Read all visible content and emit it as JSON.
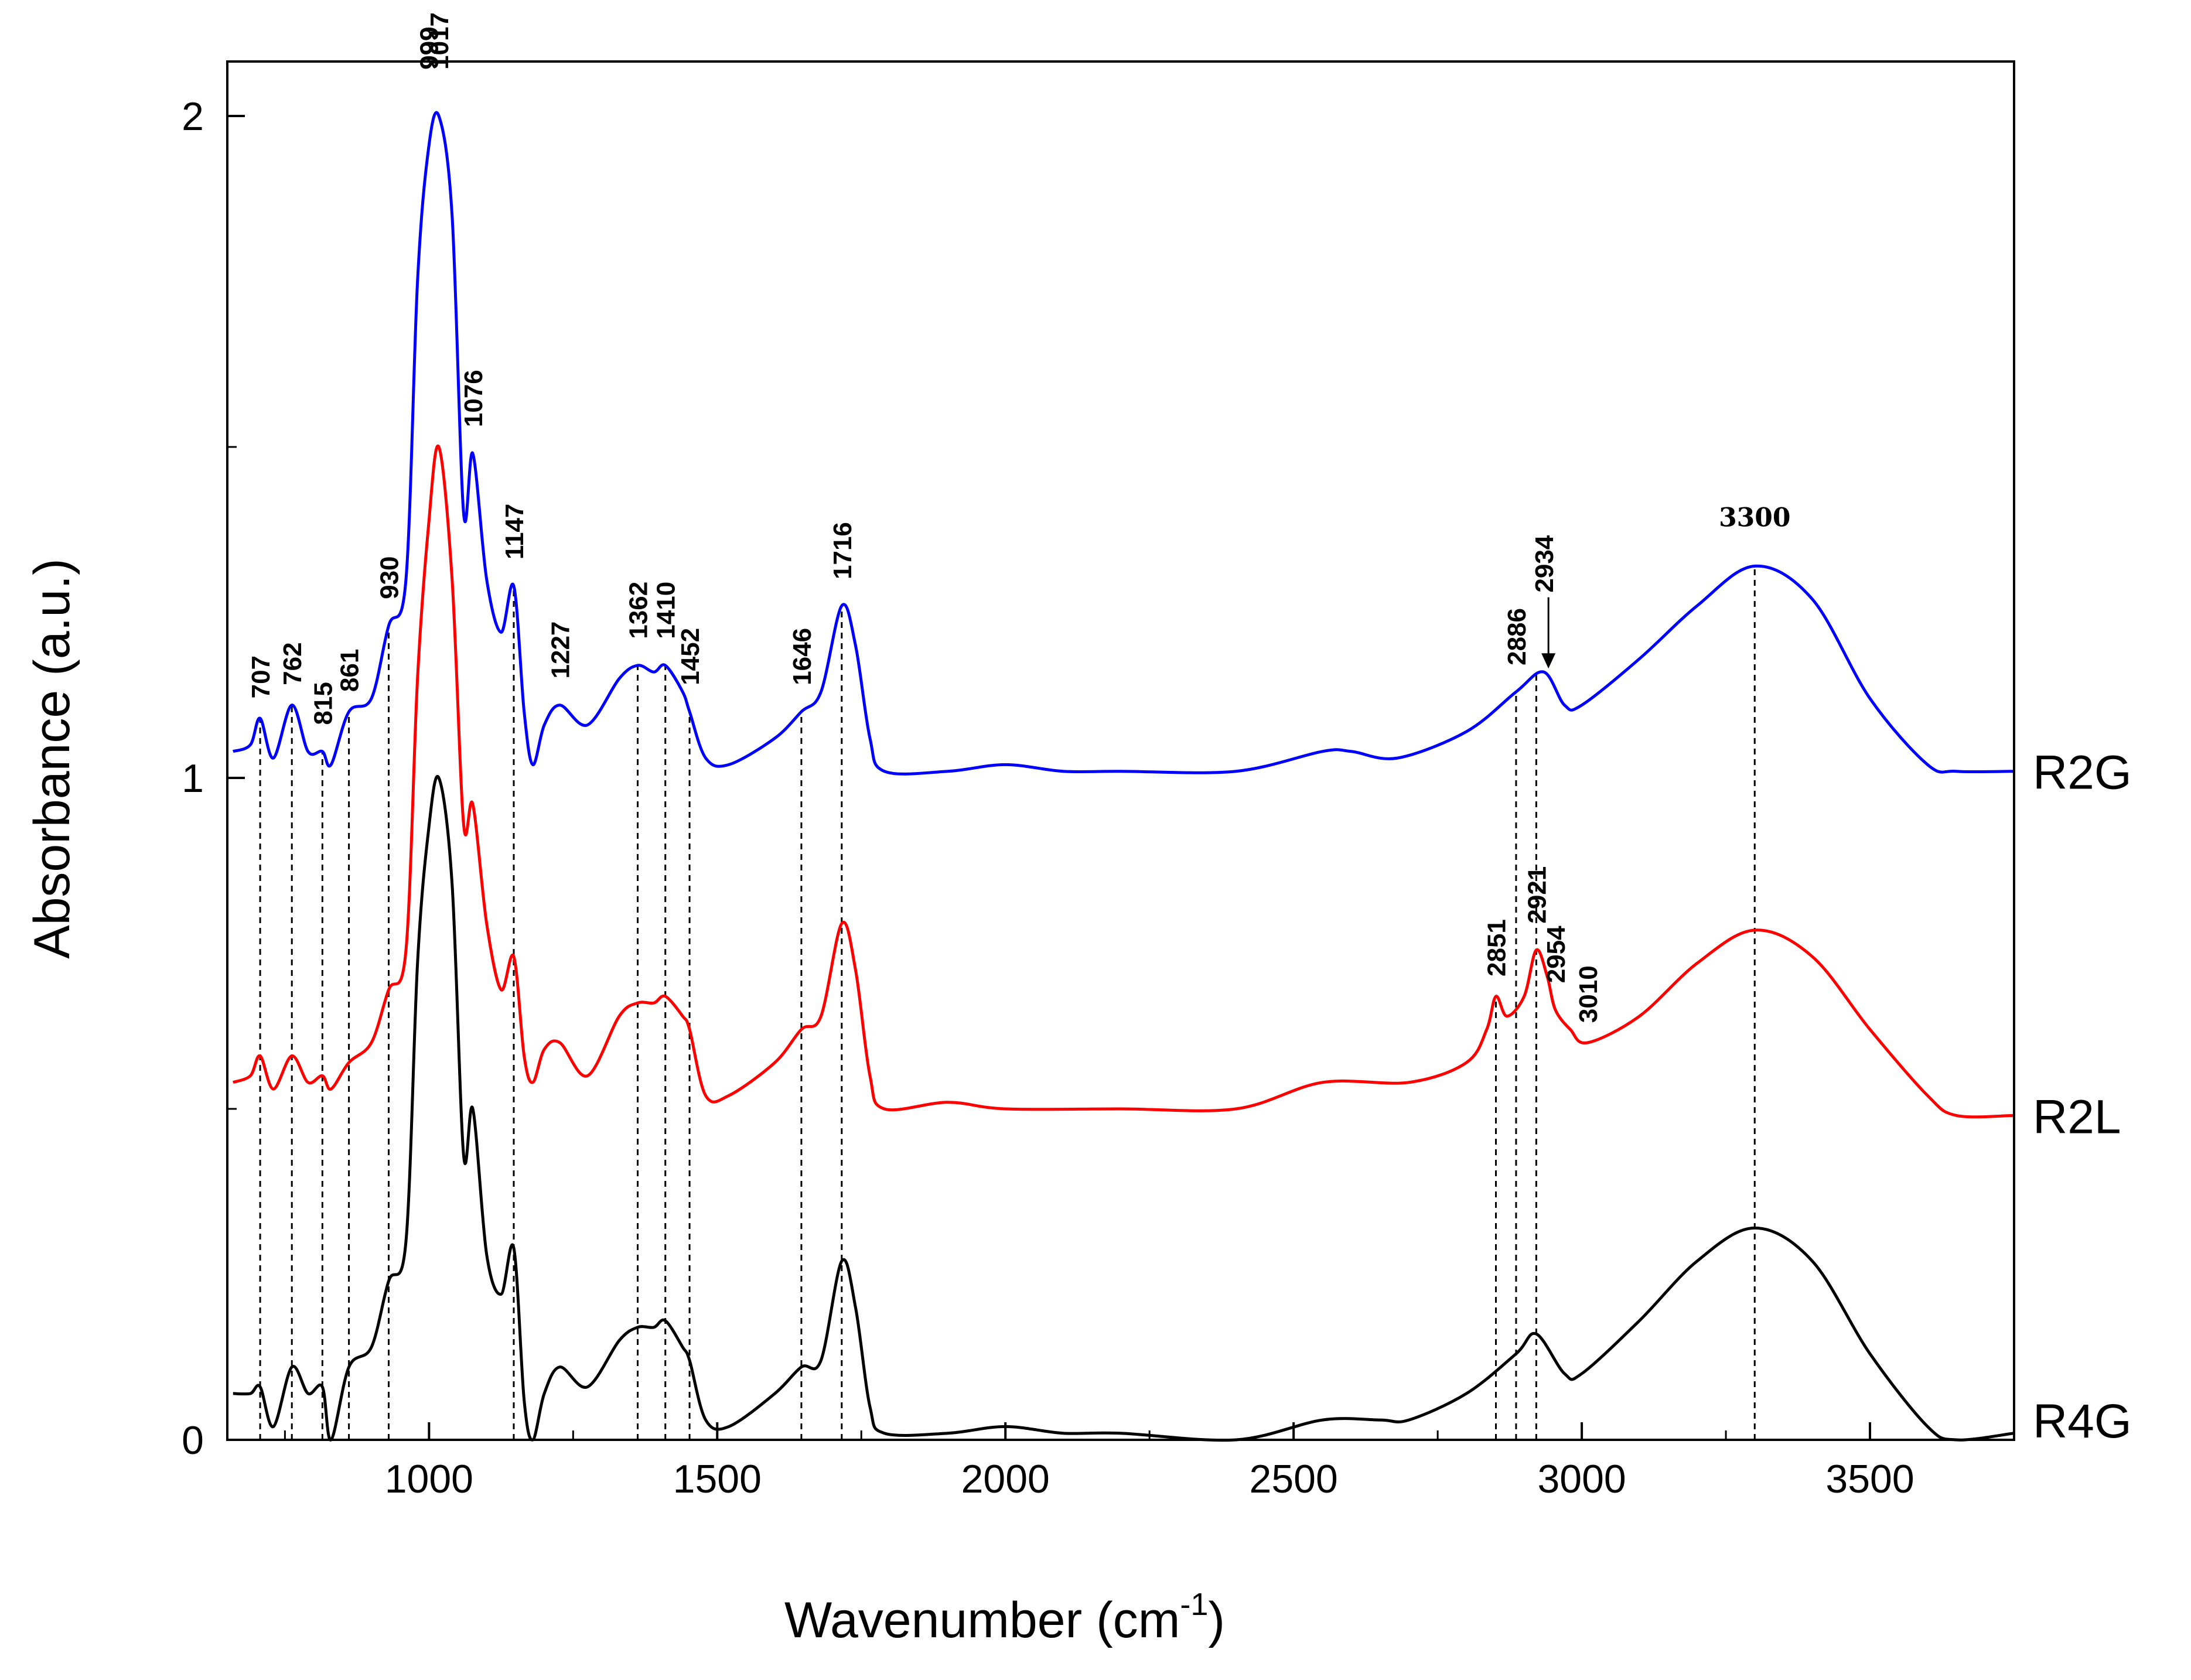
{
  "chart_data": {
    "type": "line",
    "title": "",
    "xlabel": "Wavenumber (cm",
    "xlabel_superscript": "-1",
    "xlabel_close": ")",
    "ylabel": "Absorbance (a.u.)",
    "xlim": [
      650,
      3750
    ],
    "ylim": [
      0,
      2.1
    ],
    "x_ticks": [
      1000,
      1500,
      2000,
      2500,
      3000,
      3500
    ],
    "x_tick_labels": [
      "1000",
      "1500",
      "2000",
      "2500",
      "3000",
      "3500"
    ],
    "y_ticks": [
      0,
      1,
      2
    ],
    "y_tick_labels": [
      "0",
      "1",
      "2"
    ],
    "grid": false,
    "series": [
      {
        "name": "R2G",
        "color": "#0000ff",
        "points": [
          [
            660,
            1.04
          ],
          [
            690,
            1.05
          ],
          [
            707,
            1.09
          ],
          [
            730,
            1.03
          ],
          [
            762,
            1.11
          ],
          [
            790,
            1.04
          ],
          [
            815,
            1.04
          ],
          [
            830,
            1.02
          ],
          [
            861,
            1.1
          ],
          [
            900,
            1.12
          ],
          [
            930,
            1.23
          ],
          [
            960,
            1.3
          ],
          [
            980,
            1.75
          ],
          [
            999,
            1.95
          ],
          [
            1017,
            2.0
          ],
          [
            1040,
            1.85
          ],
          [
            1060,
            1.4
          ],
          [
            1076,
            1.49
          ],
          [
            1100,
            1.3
          ],
          [
            1125,
            1.22
          ],
          [
            1147,
            1.29
          ],
          [
            1165,
            1.1
          ],
          [
            1180,
            1.02
          ],
          [
            1200,
            1.08
          ],
          [
            1227,
            1.11
          ],
          [
            1275,
            1.08
          ],
          [
            1330,
            1.15
          ],
          [
            1362,
            1.17
          ],
          [
            1390,
            1.16
          ],
          [
            1410,
            1.17
          ],
          [
            1440,
            1.13
          ],
          [
            1452,
            1.1
          ],
          [
            1480,
            1.03
          ],
          [
            1520,
            1.02
          ],
          [
            1600,
            1.06
          ],
          [
            1646,
            1.1
          ],
          [
            1680,
            1.13
          ],
          [
            1716,
            1.26
          ],
          [
            1740,
            1.2
          ],
          [
            1765,
            1.06
          ],
          [
            1790,
            1.01
          ],
          [
            1900,
            1.01
          ],
          [
            2000,
            1.02
          ],
          [
            2100,
            1.01
          ],
          [
            2200,
            1.01
          ],
          [
            2400,
            1.01
          ],
          [
            2550,
            1.04
          ],
          [
            2600,
            1.04
          ],
          [
            2680,
            1.03
          ],
          [
            2800,
            1.07
          ],
          [
            2886,
            1.13
          ],
          [
            2934,
            1.16
          ],
          [
            2970,
            1.11
          ],
          [
            3000,
            1.11
          ],
          [
            3100,
            1.18
          ],
          [
            3200,
            1.26
          ],
          [
            3300,
            1.32
          ],
          [
            3400,
            1.27
          ],
          [
            3500,
            1.12
          ],
          [
            3600,
            1.02
          ],
          [
            3650,
            1.01
          ],
          [
            3750,
            1.01
          ]
        ]
      },
      {
        "name": "R2L",
        "color": "#ff0000",
        "points": [
          [
            660,
            0.54
          ],
          [
            690,
            0.55
          ],
          [
            707,
            0.58
          ],
          [
            730,
            0.53
          ],
          [
            762,
            0.58
          ],
          [
            790,
            0.54
          ],
          [
            815,
            0.55
          ],
          [
            830,
            0.53
          ],
          [
            861,
            0.57
          ],
          [
            900,
            0.6
          ],
          [
            930,
            0.68
          ],
          [
            960,
            0.74
          ],
          [
            980,
            1.15
          ],
          [
            999,
            1.38
          ],
          [
            1017,
            1.5
          ],
          [
            1040,
            1.3
          ],
          [
            1060,
            0.93
          ],
          [
            1076,
            0.96
          ],
          [
            1100,
            0.78
          ],
          [
            1125,
            0.68
          ],
          [
            1147,
            0.73
          ],
          [
            1165,
            0.58
          ],
          [
            1180,
            0.54
          ],
          [
            1200,
            0.59
          ],
          [
            1227,
            0.6
          ],
          [
            1275,
            0.55
          ],
          [
            1330,
            0.64
          ],
          [
            1362,
            0.66
          ],
          [
            1390,
            0.66
          ],
          [
            1410,
            0.67
          ],
          [
            1440,
            0.64
          ],
          [
            1452,
            0.62
          ],
          [
            1480,
            0.52
          ],
          [
            1520,
            0.52
          ],
          [
            1600,
            0.57
          ],
          [
            1646,
            0.62
          ],
          [
            1680,
            0.64
          ],
          [
            1716,
            0.78
          ],
          [
            1740,
            0.71
          ],
          [
            1765,
            0.55
          ],
          [
            1790,
            0.5
          ],
          [
            1900,
            0.51
          ],
          [
            2000,
            0.5
          ],
          [
            2200,
            0.5
          ],
          [
            2400,
            0.5
          ],
          [
            2550,
            0.54
          ],
          [
            2700,
            0.54
          ],
          [
            2800,
            0.57
          ],
          [
            2835,
            0.62
          ],
          [
            2851,
            0.67
          ],
          [
            2870,
            0.64
          ],
          [
            2900,
            0.67
          ],
          [
            2921,
            0.74
          ],
          [
            2940,
            0.7
          ],
          [
            2954,
            0.65
          ],
          [
            2980,
            0.62
          ],
          [
            3010,
            0.6
          ],
          [
            3100,
            0.64
          ],
          [
            3200,
            0.72
          ],
          [
            3300,
            0.77
          ],
          [
            3400,
            0.73
          ],
          [
            3500,
            0.62
          ],
          [
            3600,
            0.52
          ],
          [
            3650,
            0.49
          ],
          [
            3750,
            0.49
          ]
        ]
      },
      {
        "name": "R4G",
        "color": "#000000",
        "points": [
          [
            660,
            0.07
          ],
          [
            690,
            0.07
          ],
          [
            707,
            0.08
          ],
          [
            730,
            0.02
          ],
          [
            762,
            0.11
          ],
          [
            790,
            0.07
          ],
          [
            815,
            0.08
          ],
          [
            830,
            0.0
          ],
          [
            861,
            0.11
          ],
          [
            900,
            0.14
          ],
          [
            930,
            0.24
          ],
          [
            960,
            0.3
          ],
          [
            980,
            0.72
          ],
          [
            999,
            0.92
          ],
          [
            1017,
            1.0
          ],
          [
            1040,
            0.84
          ],
          [
            1060,
            0.43
          ],
          [
            1076,
            0.5
          ],
          [
            1100,
            0.28
          ],
          [
            1125,
            0.22
          ],
          [
            1147,
            0.29
          ],
          [
            1165,
            0.06
          ],
          [
            1180,
            0.0
          ],
          [
            1200,
            0.07
          ],
          [
            1227,
            0.11
          ],
          [
            1275,
            0.08
          ],
          [
            1330,
            0.15
          ],
          [
            1362,
            0.17
          ],
          [
            1390,
            0.17
          ],
          [
            1410,
            0.18
          ],
          [
            1440,
            0.14
          ],
          [
            1452,
            0.12
          ],
          [
            1480,
            0.03
          ],
          [
            1520,
            0.02
          ],
          [
            1600,
            0.07
          ],
          [
            1646,
            0.11
          ],
          [
            1680,
            0.12
          ],
          [
            1716,
            0.27
          ],
          [
            1740,
            0.2
          ],
          [
            1765,
            0.05
          ],
          [
            1790,
            0.01
          ],
          [
            1900,
            0.01
          ],
          [
            2000,
            0.02
          ],
          [
            2100,
            0.01
          ],
          [
            2200,
            0.01
          ],
          [
            2400,
            0.0
          ],
          [
            2550,
            0.03
          ],
          [
            2650,
            0.03
          ],
          [
            2700,
            0.03
          ],
          [
            2800,
            0.07
          ],
          [
            2886,
            0.13
          ],
          [
            2921,
            0.16
          ],
          [
            2970,
            0.1
          ],
          [
            3000,
            0.1
          ],
          [
            3100,
            0.18
          ],
          [
            3200,
            0.27
          ],
          [
            3300,
            0.32
          ],
          [
            3400,
            0.27
          ],
          [
            3500,
            0.13
          ],
          [
            3600,
            0.02
          ],
          [
            3650,
            0.0
          ],
          [
            3750,
            0.01
          ]
        ]
      }
    ],
    "reference_lines": [
      {
        "x": 707,
        "y_top": 1.09
      },
      {
        "x": 762,
        "y_top": 1.11
      },
      {
        "x": 815,
        "y_top": 1.04
      },
      {
        "x": 861,
        "y_top": 1.1
      },
      {
        "x": 930,
        "y_top": 1.23
      },
      {
        "x": 1147,
        "y_top": 1.29
      },
      {
        "x": 1362,
        "y_top": 1.17
      },
      {
        "x": 1410,
        "y_top": 1.17
      },
      {
        "x": 1452,
        "y_top": 1.1
      },
      {
        "x": 1646,
        "y_top": 1.1
      },
      {
        "x": 1716,
        "y_top": 1.26
      },
      {
        "x": 2851,
        "y_top": 0.67
      },
      {
        "x": 2886,
        "y_top": 1.13
      },
      {
        "x": 2921,
        "y_top": 1.16
      },
      {
        "x": 3300,
        "y_top": 1.32
      }
    ],
    "annotations": [
      {
        "text": "999",
        "x": 999,
        "y": 2.07,
        "rotated": true,
        "font": "sans"
      },
      {
        "text": "1017",
        "x": 1017,
        "y": 2.07,
        "rotated": true,
        "font": "sans"
      },
      {
        "text": "1076",
        "x": 1076,
        "y": 1.53,
        "rotated": true,
        "font": "sans"
      },
      {
        "text": "1147",
        "x": 1147,
        "y": 1.33,
        "rotated": true,
        "font": "sans"
      },
      {
        "text": "930",
        "x": 930,
        "y": 1.27,
        "rotated": true,
        "font": "sans"
      },
      {
        "text": "707",
        "x": 707,
        "y": 1.12,
        "rotated": true,
        "font": "sans"
      },
      {
        "text": "762",
        "x": 762,
        "y": 1.14,
        "rotated": true,
        "font": "sans"
      },
      {
        "text": "815",
        "x": 815,
        "y": 1.08,
        "rotated": true,
        "font": "sans"
      },
      {
        "text": "861",
        "x": 861,
        "y": 1.13,
        "rotated": true,
        "font": "sans"
      },
      {
        "text": "1227",
        "x": 1227,
        "y": 1.15,
        "rotated": true,
        "font": "sans"
      },
      {
        "text": "1362",
        "x": 1362,
        "y": 1.21,
        "rotated": true,
        "font": "sans"
      },
      {
        "text": "1410",
        "x": 1410,
        "y": 1.21,
        "rotated": true,
        "font": "sans"
      },
      {
        "text": "1452",
        "x": 1452,
        "y": 1.14,
        "rotated": true,
        "font": "sans"
      },
      {
        "text": "1646",
        "x": 1646,
        "y": 1.14,
        "rotated": true,
        "font": "sans"
      },
      {
        "text": "1716",
        "x": 1716,
        "y": 1.3,
        "rotated": true,
        "font": "sans"
      },
      {
        "text": "2886",
        "x": 2886,
        "y": 1.17,
        "rotated": true,
        "font": "sans"
      },
      {
        "text": "2934",
        "x": 2934,
        "y": 1.28,
        "rotated": true,
        "font": "sans",
        "arrow_to": [
          2934,
          1.16
        ]
      },
      {
        "text": "3300",
        "x": 3300,
        "y": 1.38,
        "rotated": false,
        "font": "serif"
      },
      {
        "text": "2851",
        "x": 2851,
        "y": 0.7,
        "rotated": true,
        "font": "sans"
      },
      {
        "text": "2921",
        "x": 2921,
        "y": 0.78,
        "rotated": true,
        "font": "sans"
      },
      {
        "text": "2954",
        "x": 2954,
        "y": 0.69,
        "rotated": true,
        "font": "sans"
      },
      {
        "text": "3010",
        "x": 3010,
        "y": 0.63,
        "rotated": true,
        "font": "sans"
      }
    ],
    "series_labels": [
      {
        "text": "R2G",
        "y": 1.01
      },
      {
        "text": "R2L",
        "y": 0.49
      },
      {
        "text": "R4G",
        "y": 0.03
      }
    ]
  }
}
